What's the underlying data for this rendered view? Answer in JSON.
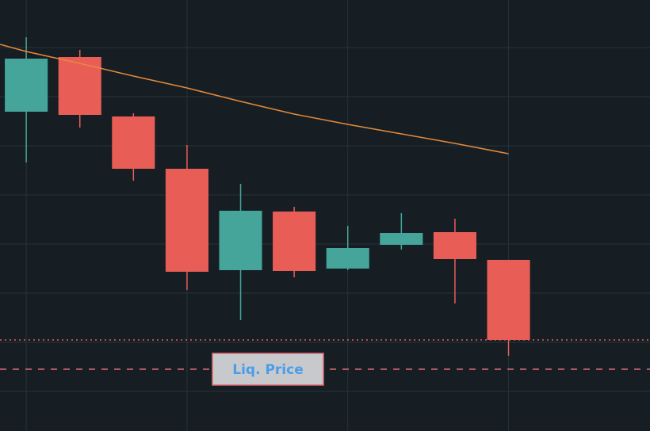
{
  "chart_data": {
    "type": "candlestick",
    "background": "#161e24",
    "grid": true,
    "grid_color": "#26323a",
    "up_color": "#45a59b",
    "down_color": "#e95d57",
    "x": [
      0,
      1,
      2,
      3,
      4,
      5,
      6,
      7,
      8,
      9
    ],
    "open": [
      403,
      472,
      397,
      331,
      203,
      277,
      205,
      235,
      251,
      216
    ],
    "high": [
      497,
      481,
      401,
      361,
      312,
      283,
      259,
      275,
      268,
      216
    ],
    "low": [
      339,
      383,
      316,
      178,
      140,
      194,
      203,
      229,
      161,
      95
    ],
    "close": [
      470,
      399,
      331,
      201,
      278,
      202,
      231,
      250,
      217,
      115
    ],
    "xlim": [
      -0.49,
      11.64
    ],
    "ylim": [
      0,
      544
    ],
    "grid_x": [
      0,
      3,
      6,
      9
    ],
    "grid_y": [
      484,
      422,
      360,
      298,
      236,
      174,
      112,
      50
    ],
    "ma": {
      "color": "#e58a3a",
      "x": [
        -0.49,
        0,
        1,
        2,
        3,
        4,
        5,
        6,
        7,
        8,
        9
      ],
      "values": [
        488,
        479,
        464,
        448,
        433,
        416,
        400,
        387,
        375,
        363,
        350
      ]
    },
    "lines": [
      {
        "value": 115,
        "style": "dotted",
        "color": "#e95d57"
      },
      {
        "value": 78,
        "style": "dashed",
        "color": "#e06a75",
        "label": "Liq. Price"
      }
    ]
  }
}
